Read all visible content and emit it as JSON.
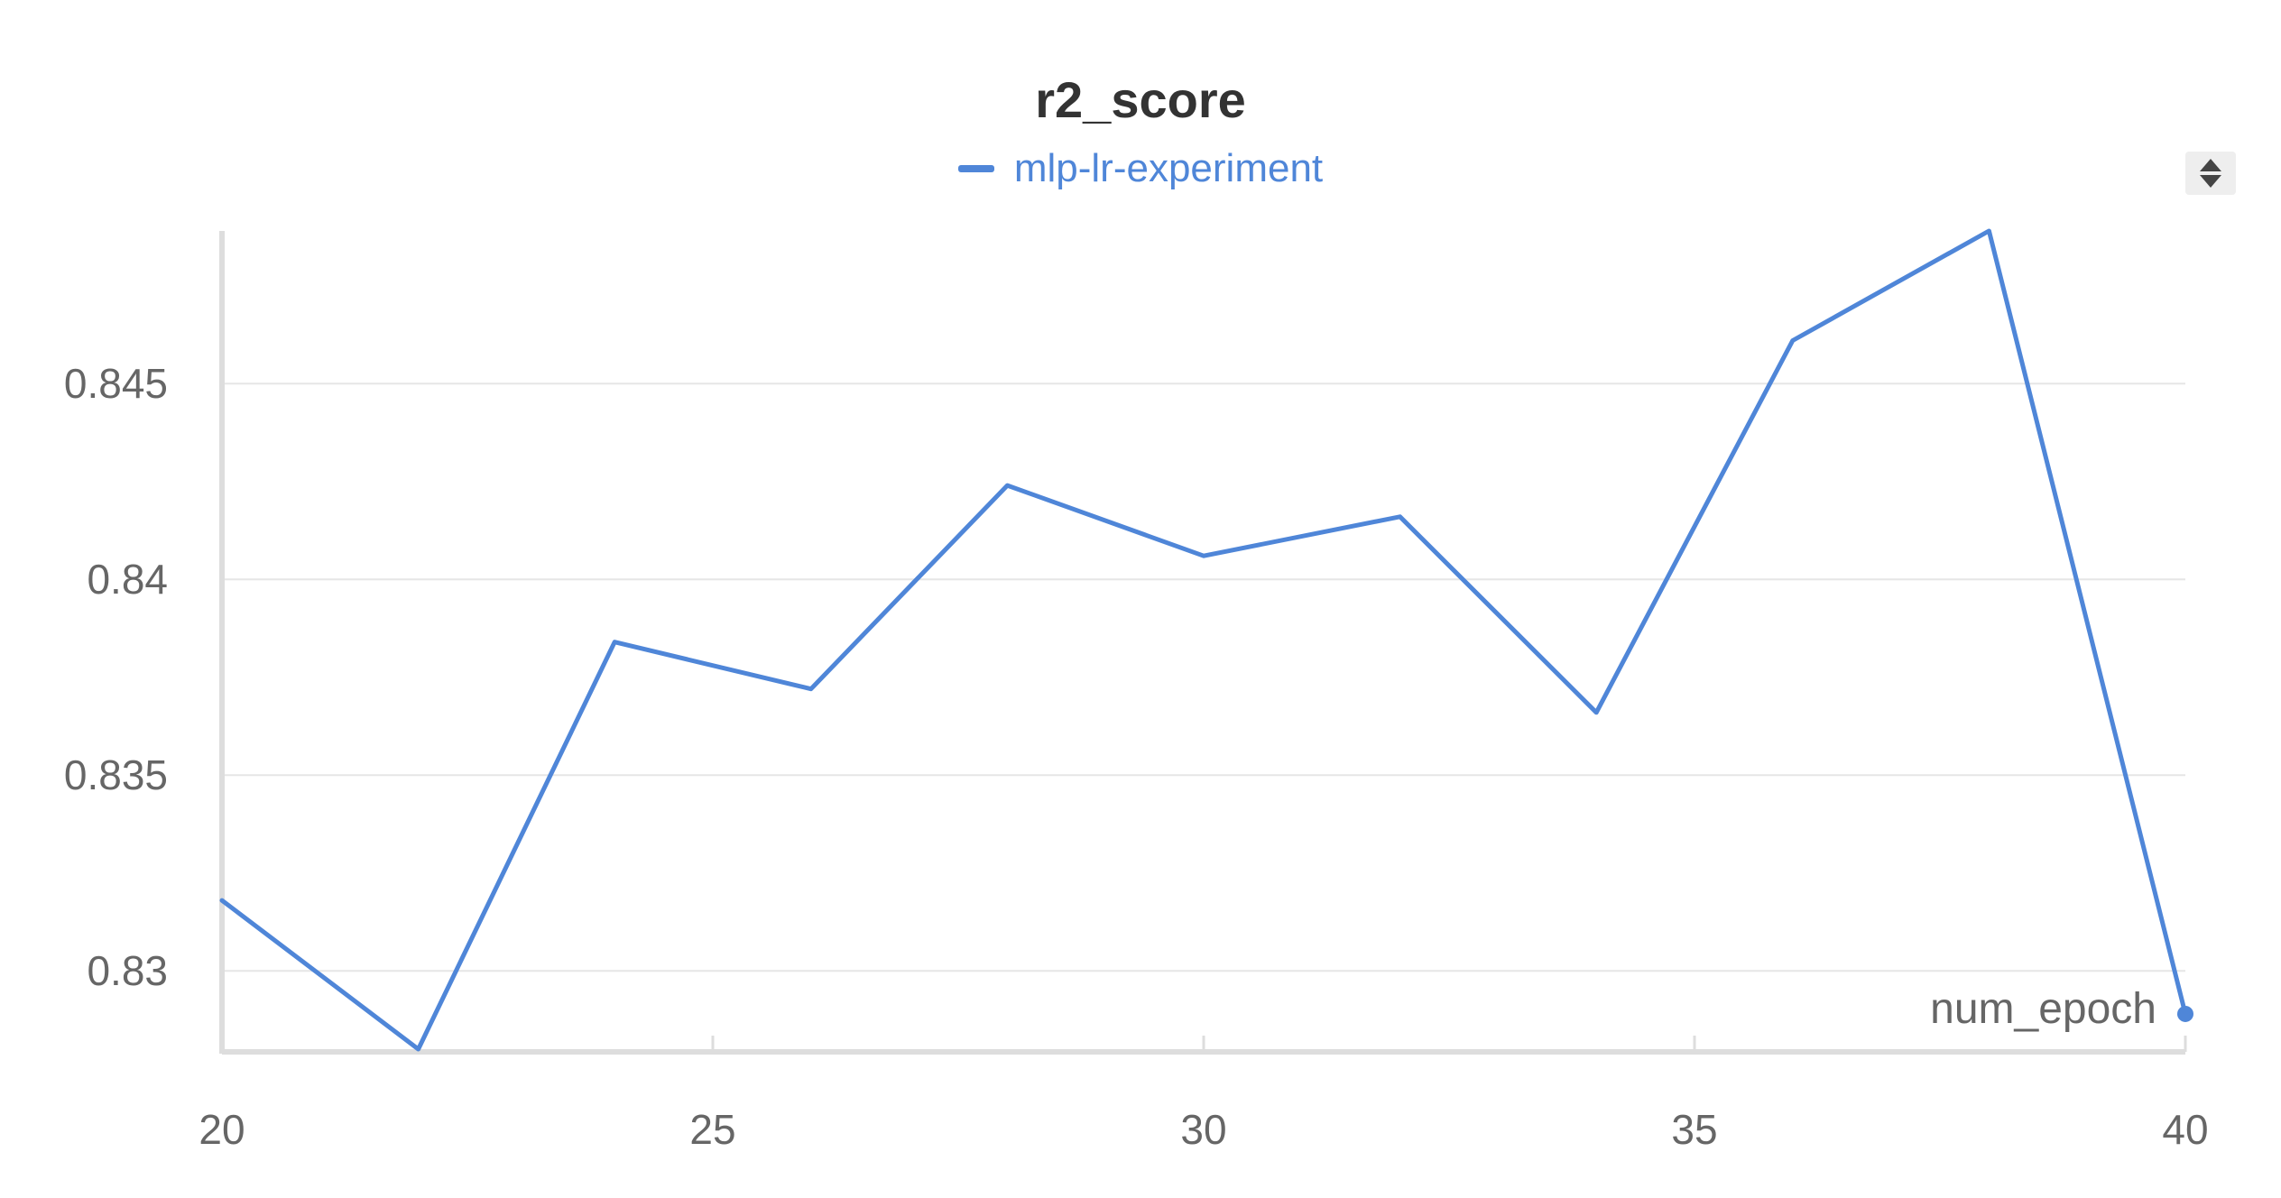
{
  "chart_data": {
    "type": "line",
    "title": "r2_score",
    "xlabel": "num_epoch",
    "ylabel": "",
    "xlim": [
      20,
      40
    ],
    "ylim": [
      0.828,
      0.8489
    ],
    "x_ticks": [
      20,
      25,
      30,
      35,
      40
    ],
    "y_ticks": [
      {
        "value": 0.83,
        "label": "0.83"
      },
      {
        "value": 0.835,
        "label": "0.835"
      },
      {
        "value": 0.84,
        "label": "0.84"
      },
      {
        "value": 0.845,
        "label": "0.845"
      }
    ],
    "grid": true,
    "legend_position": "top-center",
    "series": [
      {
        "name": "mlp-lr-experiment",
        "color": "#4f86d8",
        "x": [
          20,
          22,
          24,
          26,
          28,
          30,
          32,
          34,
          36,
          38,
          40
        ],
        "y": [
          0.8318,
          0.828,
          0.8384,
          0.8372,
          0.8424,
          0.8406,
          0.8416,
          0.8366,
          0.8461,
          0.8489,
          0.8289
        ]
      }
    ]
  },
  "colors": {
    "series": "#4f86d8",
    "grid": "#e6e6e6",
    "axis": "#dddddd",
    "title": "#333333",
    "tick": "#666666"
  },
  "controls": {
    "sort_toggle_icon": "sort-updown-icon"
  }
}
